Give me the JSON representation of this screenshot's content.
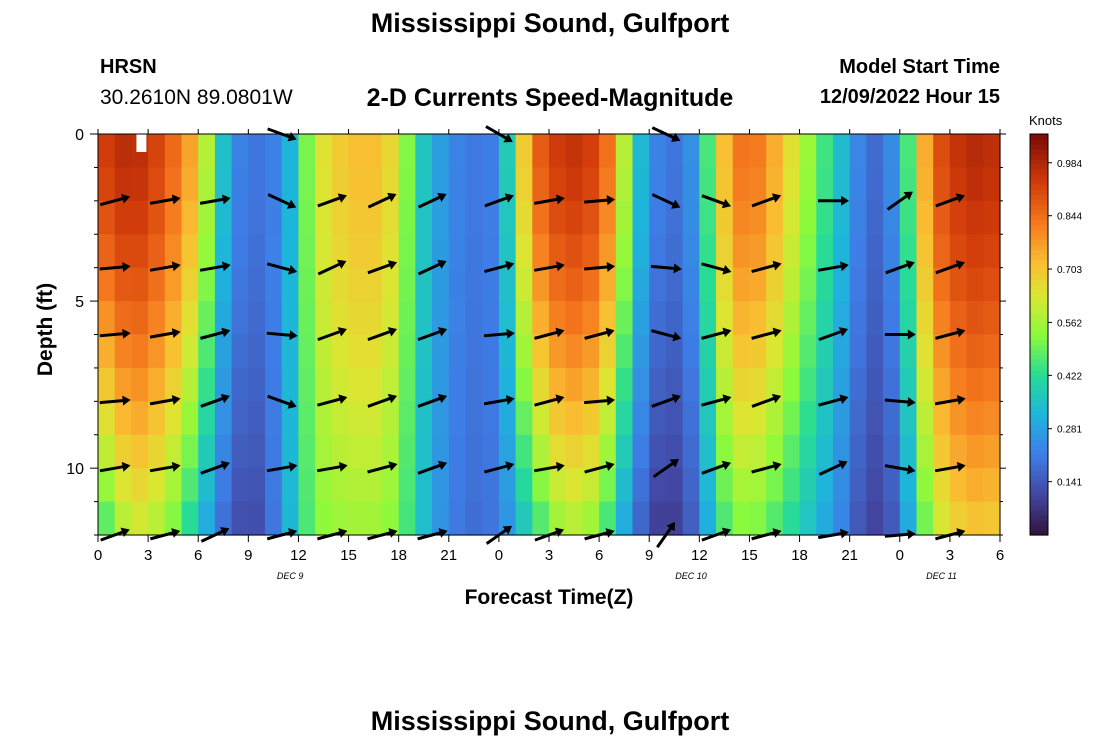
{
  "header": {
    "title": "Mississippi Sound, Gulfport",
    "station_id": "HRSN",
    "station_coords": "30.2610N  89.0801W",
    "subtitle": "2-D Currents Speed-Magnitude",
    "model_start_label": "Model Start Time",
    "model_start_value": "12/09/2022 Hour 15",
    "bottom_title": "Mississippi Sound, Gulfport"
  },
  "chart_data": {
    "type": "heatmap",
    "xlabel": "Forecast Time(Z)",
    "ylabel": "Depth (ft)",
    "x_tick_labels": [
      "0",
      "3",
      "6",
      "9",
      "12",
      "15",
      "18",
      "21",
      "0",
      "3",
      "6",
      "9",
      "12",
      "15",
      "18",
      "21",
      "0",
      "3",
      "6"
    ],
    "day_labels": [
      {
        "label": "DEC 9",
        "x_hours": 11.5
      },
      {
        "label": "DEC 10",
        "x_hours": 35.5
      },
      {
        "label": "DEC 11",
        "x_hours": 50.5
      }
    ],
    "xlim": [
      0,
      54
    ],
    "x_unit": "hours from 00Z Dec 9",
    "y_ticks": [
      0,
      5,
      10
    ],
    "ylim": [
      0,
      12
    ],
    "y_inverted": true,
    "colorbar": {
      "unit_label": "Knots",
      "tick_labels": [
        "0.141",
        "0.281",
        "0.422",
        "0.562",
        "0.703",
        "0.844",
        "0.984"
      ],
      "range": [
        0.0,
        1.06
      ]
    },
    "depths_ft": [
      0,
      2,
      4,
      6,
      8,
      10,
      12
    ],
    "speed_profile": {
      "hours": [
        0,
        2,
        4,
        6,
        7,
        8,
        9,
        10,
        11,
        12,
        13,
        15,
        17,
        18,
        19,
        20,
        22,
        24,
        26,
        28,
        30,
        31,
        32,
        33,
        34,
        35,
        36,
        37,
        38,
        39,
        40,
        42,
        44,
        45,
        46,
        47,
        48,
        49,
        50,
        52,
        54
      ],
      "surface": [
        0.92,
        0.99,
        0.9,
        0.72,
        0.45,
        0.25,
        0.2,
        0.2,
        0.24,
        0.4,
        0.62,
        0.72,
        0.72,
        0.62,
        0.42,
        0.3,
        0.2,
        0.22,
        0.85,
        0.97,
        0.92,
        0.76,
        0.42,
        0.25,
        0.2,
        0.2,
        0.3,
        0.62,
        0.82,
        0.85,
        0.8,
        0.6,
        0.4,
        0.28,
        0.18,
        0.18,
        0.3,
        0.62,
        0.88,
        0.98,
        0.96
      ],
      "bottom": [
        0.4,
        0.62,
        0.55,
        0.35,
        0.22,
        0.14,
        0.1,
        0.14,
        0.26,
        0.4,
        0.52,
        0.55,
        0.55,
        0.5,
        0.4,
        0.28,
        0.18,
        0.2,
        0.4,
        0.58,
        0.52,
        0.35,
        0.22,
        0.1,
        0.08,
        0.1,
        0.2,
        0.4,
        0.5,
        0.52,
        0.48,
        0.38,
        0.26,
        0.18,
        0.1,
        0.1,
        0.18,
        0.4,
        0.58,
        0.7,
        0.68
      ]
    },
    "arrow_columns_hours": [
      1,
      4,
      7,
      11,
      14,
      17,
      20,
      24,
      27,
      30,
      34,
      37,
      40,
      44,
      48,
      51
    ],
    "arrow_rows_ft": [
      0,
      2,
      4,
      6,
      8,
      10,
      12
    ],
    "arrow_directions_deg": [
      [
        null,
        null,
        null,
        -20,
        null,
        null,
        null,
        -30,
        null,
        null,
        -25,
        null,
        null,
        null,
        null,
        null
      ],
      [
        15,
        10,
        10,
        -25,
        20,
        25,
        25,
        20,
        10,
        5,
        -25,
        -20,
        20,
        0,
        35,
        20
      ],
      [
        5,
        10,
        10,
        -15,
        25,
        20,
        25,
        15,
        10,
        5,
        -5,
        -15,
        15,
        10,
        20,
        20
      ],
      [
        5,
        10,
        15,
        -5,
        20,
        20,
        20,
        5,
        15,
        15,
        -15,
        15,
        15,
        20,
        0,
        15
      ],
      [
        5,
        10,
        20,
        -20,
        15,
        20,
        20,
        10,
        15,
        5,
        20,
        15,
        20,
        15,
        -5,
        10
      ],
      [
        10,
        10,
        20,
        10,
        10,
        15,
        20,
        15,
        10,
        15,
        35,
        20,
        15,
        25,
        -10,
        10
      ],
      [
        20,
        15,
        25,
        15,
        15,
        15,
        15,
        35,
        20,
        15,
        55,
        20,
        15,
        10,
        5,
        15
      ]
    ]
  }
}
